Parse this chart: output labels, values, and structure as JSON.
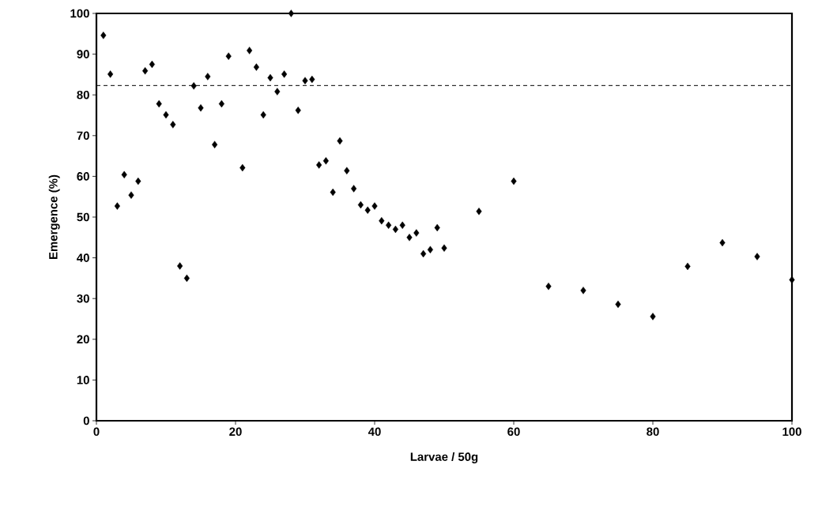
{
  "chart_data": {
    "type": "scatter",
    "xlabel": "Larvae / 50g",
    "ylabel": "Emergence (%)",
    "x": [
      1,
      2,
      3,
      4,
      5,
      6,
      7,
      8,
      9,
      10,
      11,
      12,
      13,
      14,
      15,
      16,
      17,
      18,
      19,
      21,
      22,
      23,
      24,
      25,
      26,
      27,
      28,
      29,
      30,
      31,
      32,
      33,
      34,
      35,
      36,
      37,
      38,
      39,
      40,
      41,
      42,
      43,
      44,
      45,
      46,
      47,
      48,
      49,
      50,
      55,
      60,
      65,
      70,
      75,
      80,
      85,
      90,
      95,
      100
    ],
    "values": [
      94.6,
      85.1,
      52.7,
      60.4,
      55.4,
      58.8,
      85.9,
      87.5,
      77.8,
      75.1,
      72.7,
      38.0,
      35.0,
      82.2,
      76.8,
      84.5,
      67.8,
      77.8,
      89.5,
      62.1,
      90.9,
      86.8,
      75.1,
      84.2,
      80.8,
      85.1,
      100,
      76.2,
      83.5,
      83.8,
      62.8,
      63.8,
      56.1,
      68.7,
      61.4,
      57.0,
      53.0,
      51.7,
      52.7,
      49.1,
      48.0,
      47.0,
      48.0,
      45.0,
      46.1,
      41.0,
      42.0,
      47.4,
      42.4,
      51.4,
      58.8,
      33.0,
      32.0,
      28.6,
      25.6,
      37.9,
      43.7,
      40.3,
      34.6
    ],
    "color": "#000000",
    "marker": "diamond",
    "xlim": [
      0,
      100
    ],
    "ylim": [
      0,
      100
    ],
    "xticks": [
      0,
      20,
      40,
      60,
      80,
      100
    ],
    "yticks": [
      0,
      10,
      20,
      30,
      40,
      50,
      60,
      70,
      80,
      90,
      100
    ],
    "ref_lines": [
      {
        "axis": "y",
        "value": 82.3,
        "line_style": "dashed",
        "color": "#000000"
      }
    ]
  }
}
